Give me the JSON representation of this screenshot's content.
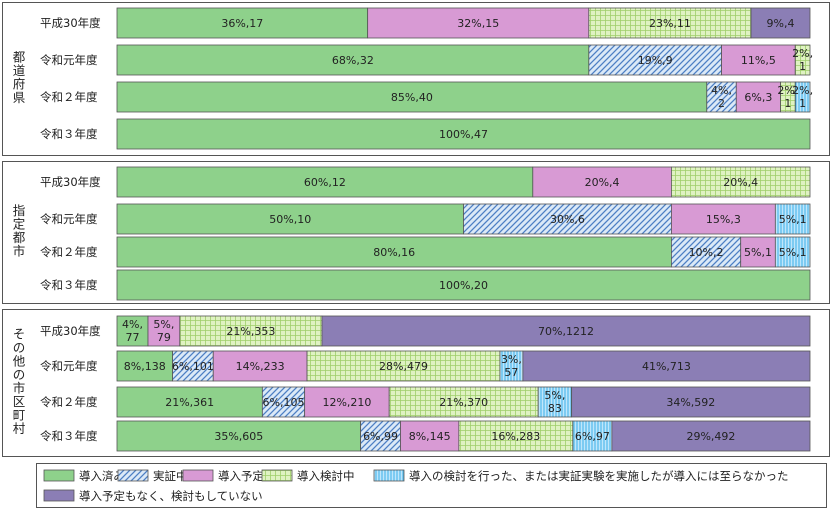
{
  "chart_data": {
    "type": "bar",
    "orientation": "horizontal",
    "stacked": "percent",
    "colors": {
      "導入済み": "#8ed18b",
      "実証中": "#dbe9f7",
      "導入予定": "#d89ad4",
      "導入検討中": "#dff2c2",
      "導入の検討を行った、または実証実験を実施したが導入には至らなかった": "#bfe6fb",
      "導入予定もなく、検討もしていない": "#8b7eb5"
    },
    "legend_placement": "bottom",
    "legend": [
      {
        "key": "導入済み",
        "label": "導入済み",
        "pattern": "solid"
      },
      {
        "key": "実証中",
        "label": "実証中",
        "pattern": "diagonal"
      },
      {
        "key": "導入予定",
        "label": "導入予定",
        "pattern": "solid"
      },
      {
        "key": "導入検討中",
        "label": "導入検討中",
        "pattern": "grid"
      },
      {
        "key": "導入の検討を行った、または実証実験を実施したが導入には至らなかった",
        "label": "導入の検討を行った、または実証実験を実施したが導入には至らなかった",
        "pattern": "vertical"
      },
      {
        "key": "導入予定もなく、検討もしていない",
        "label": "導入予定もなく、検討もしていない",
        "pattern": "solid"
      }
    ],
    "groups": [
      {
        "name": "都道府県",
        "rows": [
          {
            "label": "平成30年度",
            "segments": [
              {
                "key": "導入済み",
                "count": 17,
                "label_lines": [
                  "36%,17"
                ]
              },
              {
                "key": "導入予定",
                "count": 15,
                "label_lines": [
                  "32%,15"
                ]
              },
              {
                "key": "導入検討中",
                "count": 11,
                "label_lines": [
                  "23%,11"
                ]
              },
              {
                "key": "導入予定もなく、検討もしていない",
                "count": 4,
                "label_lines": [
                  "9%,4"
                ]
              }
            ]
          },
          {
            "label": "令和元年度",
            "segments": [
              {
                "key": "導入済み",
                "count": 32,
                "label_lines": [
                  "68%,32"
                ]
              },
              {
                "key": "実証中",
                "count": 9,
                "label_lines": [
                  "19%,9"
                ]
              },
              {
                "key": "導入予定",
                "count": 5,
                "label_lines": [
                  "11%,5"
                ]
              },
              {
                "key": "導入検討中",
                "count": 1,
                "label_lines": [
                  "2%,",
                  "1"
                ]
              }
            ]
          },
          {
            "label": "令和２年度",
            "segments": [
              {
                "key": "導入済み",
                "count": 40,
                "label_lines": [
                  "85%,40"
                ]
              },
              {
                "key": "実証中",
                "count": 2,
                "label_lines": [
                  "4%,",
                  "2"
                ]
              },
              {
                "key": "導入予定",
                "count": 3,
                "label_lines": [
                  "6%,3"
                ]
              },
              {
                "key": "導入検討中",
                "count": 1,
                "label_lines": [
                  "2%,",
                  "1"
                ]
              },
              {
                "key": "導入の検討を行った、または実証実験を実施したが導入には至らなかった",
                "count": 1,
                "label_lines": [
                  "2%,",
                  "1"
                ]
              }
            ]
          },
          {
            "label": "令和３年度",
            "segments": [
              {
                "key": "導入済み",
                "count": 47,
                "label_lines": [
                  "100%,47"
                ]
              }
            ]
          }
        ]
      },
      {
        "name": "指定都市",
        "rows": [
          {
            "label": "平成30年度",
            "segments": [
              {
                "key": "導入済み",
                "count": 12,
                "label_lines": [
                  "60%,12"
                ]
              },
              {
                "key": "導入予定",
                "count": 4,
                "label_lines": [
                  "20%,4"
                ]
              },
              {
                "key": "導入検討中",
                "count": 4,
                "label_lines": [
                  "20%,4"
                ]
              }
            ]
          },
          {
            "label": "令和元年度",
            "segments": [
              {
                "key": "導入済み",
                "count": 10,
                "label_lines": [
                  "50%,10"
                ]
              },
              {
                "key": "実証中",
                "count": 6,
                "label_lines": [
                  "30%,6"
                ]
              },
              {
                "key": "導入予定",
                "count": 3,
                "label_lines": [
                  "15%,3"
                ]
              },
              {
                "key": "導入の検討を行った、または実証実験を実施したが導入には至らなかった",
                "count": 1,
                "label_lines": [
                  "5%,1"
                ]
              }
            ]
          },
          {
            "label": "令和２年度",
            "segments": [
              {
                "key": "導入済み",
                "count": 16,
                "label_lines": [
                  "80%,16"
                ]
              },
              {
                "key": "実証中",
                "count": 2,
                "label_lines": [
                  "10%,2"
                ]
              },
              {
                "key": "導入予定",
                "count": 1,
                "label_lines": [
                  "5%,1"
                ]
              },
              {
                "key": "導入の検討を行った、または実証実験を実施したが導入には至らなかった",
                "count": 1,
                "label_lines": [
                  "5%,1"
                ]
              }
            ]
          },
          {
            "label": "令和３年度",
            "segments": [
              {
                "key": "導入済み",
                "count": 20,
                "label_lines": [
                  "100%,20"
                ]
              }
            ]
          }
        ]
      },
      {
        "name": "その他の市区町村",
        "rows": [
          {
            "label": "平成30年度",
            "segments": [
              {
                "key": "導入済み",
                "count": 77,
                "label_lines": [
                  "4%,",
                  "77"
                ]
              },
              {
                "key": "導入予定",
                "count": 79,
                "label_lines": [
                  "5%,",
                  "79"
                ]
              },
              {
                "key": "導入検討中",
                "count": 353,
                "label_lines": [
                  "21%,353"
                ]
              },
              {
                "key": "導入予定もなく、検討もしていない",
                "count": 1212,
                "label_lines": [
                  "70%,1212"
                ]
              }
            ]
          },
          {
            "label": "令和元年度",
            "segments": [
              {
                "key": "導入済み",
                "count": 138,
                "label_lines": [
                  "8%,138"
                ]
              },
              {
                "key": "実証中",
                "count": 101,
                "label_lines": [
                  "6%,101"
                ]
              },
              {
                "key": "導入予定",
                "count": 233,
                "label_lines": [
                  "14%,233"
                ]
              },
              {
                "key": "導入検討中",
                "count": 479,
                "label_lines": [
                  "28%,479"
                ]
              },
              {
                "key": "導入の検討を行った、または実証実験を実施したが導入には至らなかった",
                "count": 57,
                "label_lines": [
                  "3%,",
                  "57"
                ]
              },
              {
                "key": "導入予定もなく、検討もしていない",
                "count": 713,
                "label_lines": [
                  "41%,713"
                ]
              }
            ]
          },
          {
            "label": "令和２年度",
            "segments": [
              {
                "key": "導入済み",
                "count": 361,
                "label_lines": [
                  "21%,361"
                ]
              },
              {
                "key": "実証中",
                "count": 105,
                "label_lines": [
                  "6%,105"
                ]
              },
              {
                "key": "導入予定",
                "count": 210,
                "label_lines": [
                  "12%,210"
                ]
              },
              {
                "key": "導入検討中",
                "count": 370,
                "label_lines": [
                  "21%,370"
                ]
              },
              {
                "key": "導入の検討を行った、または実証実験を実施したが導入には至らなかった",
                "count": 83,
                "label_lines": [
                  "5%,",
                  "83"
                ]
              },
              {
                "key": "導入予定もなく、検討もしていない",
                "count": 592,
                "label_lines": [
                  "34%,592"
                ]
              }
            ]
          },
          {
            "label": "令和３年度",
            "segments": [
              {
                "key": "導入済み",
                "count": 605,
                "label_lines": [
                  "35%,605"
                ]
              },
              {
                "key": "実証中",
                "count": 99,
                "label_lines": [
                  "6%,99"
                ]
              },
              {
                "key": "導入予定",
                "count": 145,
                "label_lines": [
                  "8%,145"
                ]
              },
              {
                "key": "導入検討中",
                "count": 283,
                "label_lines": [
                  "16%,283"
                ]
              },
              {
                "key": "導入の検討を行った、または実証実験を実施したが導入には至らなかった",
                "count": 97,
                "label_lines": [
                  "6%,97"
                ]
              },
              {
                "key": "導入予定もなく、検討もしていない",
                "count": 492,
                "label_lines": [
                  "29%,492"
                ]
              }
            ]
          }
        ]
      }
    ]
  }
}
